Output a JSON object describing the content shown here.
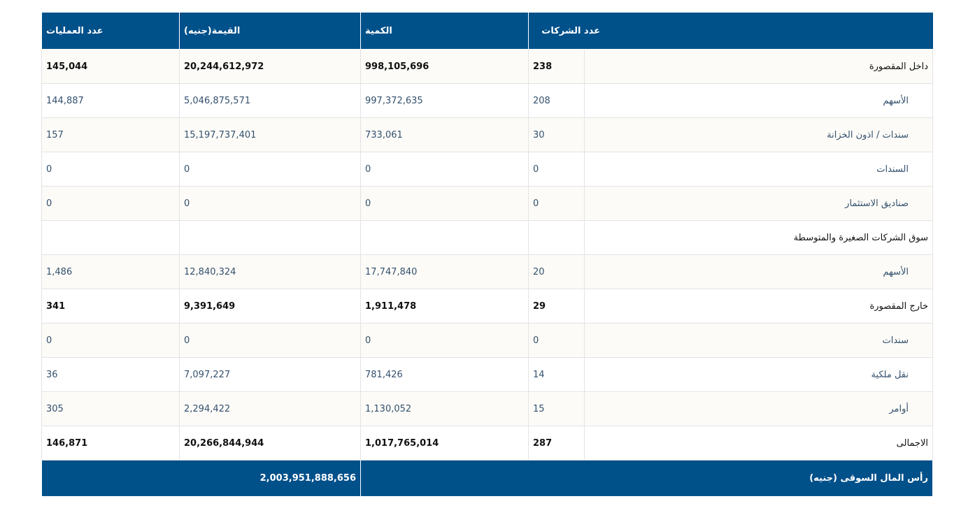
{
  "header": {
    "companies": "عدد الشركات",
    "quantity": "الكمية",
    "value": "القيمة(جنيه)",
    "trades": "عدد العمليات"
  },
  "rows": [
    {
      "label": "داخل المقصورة",
      "companies": "238",
      "quantity": "998,105,696",
      "value": "20,244,612,972",
      "trades": "145,044"
    },
    {
      "label": "الأسهم",
      "companies": "208",
      "quantity": "997,372,635",
      "value": "5,046,875,571",
      "trades": "144,887"
    },
    {
      "label": "سندات / اذون الخزانة",
      "companies": "30",
      "quantity": "733,061",
      "value": "15,197,737,401",
      "trades": "157"
    },
    {
      "label": "السندات",
      "companies": "0",
      "quantity": "0",
      "value": "0",
      "trades": "0"
    },
    {
      "label": "صناديق الاستثمار",
      "companies": "0",
      "quantity": "0",
      "value": "0",
      "trades": "0"
    },
    {
      "label": "سوق الشركات الصغيرة والمتوسطة"
    },
    {
      "label": "الأسهم",
      "companies": "20",
      "quantity": "17,747,840",
      "value": "12,840,324",
      "trades": "1,486"
    },
    {
      "label": "خارج المقصورة",
      "companies": "29",
      "quantity": "1,911,478",
      "value": "9,391,649",
      "trades": "341"
    },
    {
      "label": "سندات",
      "companies": "0",
      "quantity": "0",
      "value": "0",
      "trades": "0"
    },
    {
      "label": "نقل ملكية",
      "companies": "14",
      "quantity": "781,426",
      "value": "7,097,227",
      "trades": "36"
    },
    {
      "label": "أوامر",
      "companies": "15",
      "quantity": "1,130,052",
      "value": "2,294,422",
      "trades": "305"
    },
    {
      "label": "الاجمالى",
      "companies": "287",
      "quantity": "1,017,765,014",
      "value": "20,266,844,944",
      "trades": "146,871"
    }
  ],
  "footer": {
    "label": "رأس المال السوقى (جنيه)",
    "value": "2,003,951,888,656"
  }
}
